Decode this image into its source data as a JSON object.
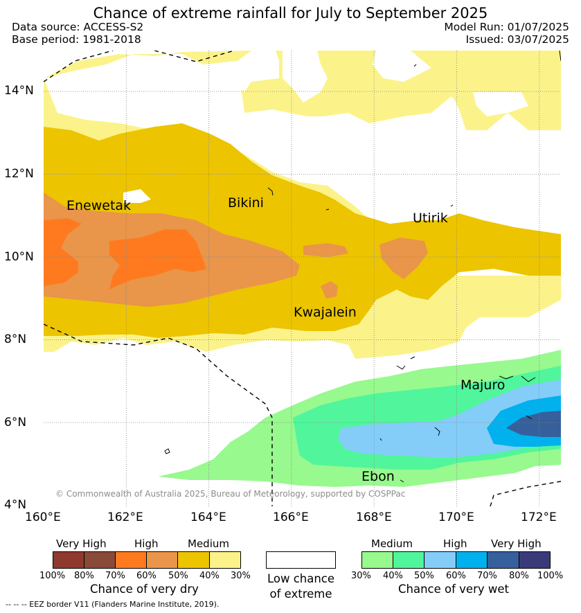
{
  "header": {
    "title": "Chance of extreme rainfall for July to September 2025",
    "data_source": "Data source: ACCESS-S2",
    "base_period": "Base period: 1981-2018",
    "model_run": "Model Run: 01/07/2025",
    "issued": "Issued: 03/07/2025"
  },
  "map": {
    "lon_labels": [
      "160°E",
      "162°E",
      "164°E",
      "166°E",
      "168°E",
      "170°E",
      "172°E"
    ],
    "lat_labels": [
      "14°N",
      "12°N",
      "10°N",
      "8°N",
      "6°N",
      "4°N"
    ],
    "places": [
      "Enewetak",
      "Bikini",
      "Utirik",
      "Kwajalein",
      "Majuro",
      "Ebon"
    ],
    "copyright": "© Commonwealth of Australia 2025, Bureau of Meteorology, supported by COSPPac"
  },
  "legend": {
    "dry": {
      "categories": [
        "Very High",
        "High",
        "Medium"
      ],
      "percents": [
        "100%",
        "80%",
        "70%",
        "60%",
        "50%",
        "40%",
        "30%"
      ],
      "colors": [
        "#8f3a2d",
        "#8a4a38",
        "#ff7a1f",
        "#e9954a",
        "#ecc400",
        "#fbf38a"
      ],
      "title": "Chance of very dry"
    },
    "low": {
      "line1": "Low chance",
      "line2": "of extreme"
    },
    "wet": {
      "categories": [
        "Medium",
        "High",
        "Very High"
      ],
      "percents": [
        "30%",
        "40%",
        "50%",
        "60%",
        "70%",
        "80%",
        "100%"
      ],
      "colors": [
        "#98f98e",
        "#51f59c",
        "#85cdf9",
        "#00b1ee",
        "#36609c",
        "#3a3a7a"
      ],
      "title": "Chance of very wet"
    },
    "eez_note": "--  --  -- EEZ border V11 (Flanders Marine Institute, 2019)."
  }
}
